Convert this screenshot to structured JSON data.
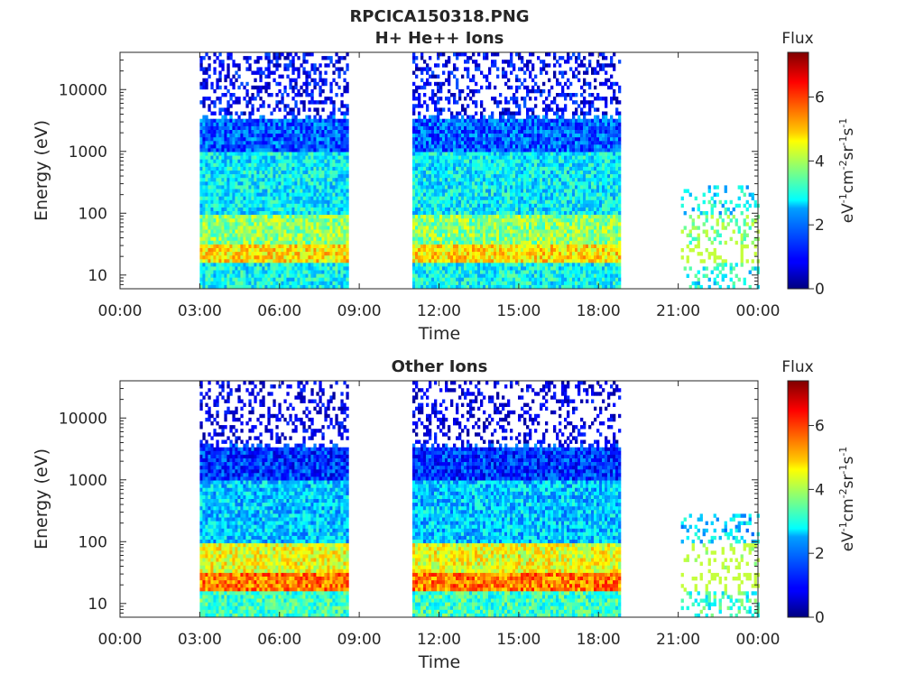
{
  "figure": {
    "title": "RPCICA150318.PNG"
  },
  "chart_data": [
    {
      "type": "heatmap",
      "title": "H+ He++ Ions",
      "xlabel": "Time",
      "ylabel": "Energy (eV)",
      "x_ticks": [
        "00:00",
        "03:00",
        "06:00",
        "09:00",
        "12:00",
        "15:00",
        "18:00",
        "21:00",
        "00:00"
      ],
      "x_range_hours": [
        0,
        24
      ],
      "y_ticks": [
        "10",
        "100",
        "1000",
        "10000"
      ],
      "y_scale": "log",
      "y_range": [
        6,
        40000
      ],
      "colorbar": {
        "title": "Flux",
        "label": "eV-1cm-2sr-1s-1",
        "ticks": [
          "0",
          "2",
          "4",
          "6"
        ],
        "range": [
          0,
          7.4
        ],
        "colormap": "jet"
      },
      "data_intervals_hours": [
        [
          3.0,
          8.6
        ],
        [
          11.0,
          18.8
        ],
        [
          21.1,
          24.0
        ]
      ],
      "sparse_intervals_hours": [
        [
          21.1,
          24.0
        ]
      ],
      "band_energies_eV": {
        "low_peak": 25,
        "mid": 110,
        "upper_band": 1500,
        "upper_band_top": 3300
      },
      "typical_flux": {
        "above_4000_eV": 0.8,
        "1000_3300_eV": 1.6,
        "100_1000_eV": 2.7,
        "30_100_eV": 3.8,
        "15_30_eV": 4.8,
        "below_15_eV": 2.8
      }
    },
    {
      "type": "heatmap",
      "title": "Other Ions",
      "xlabel": "Time",
      "ylabel": "Energy (eV)",
      "x_ticks": [
        "00:00",
        "03:00",
        "06:00",
        "09:00",
        "12:00",
        "15:00",
        "18:00",
        "21:00",
        "00:00"
      ],
      "x_range_hours": [
        0,
        24
      ],
      "y_ticks": [
        "10",
        "100",
        "1000",
        "10000"
      ],
      "y_scale": "log",
      "y_range": [
        6,
        40000
      ],
      "colorbar": {
        "title": "Flux",
        "label": "eV-1cm-2sr-1s-1",
        "ticks": [
          "0",
          "2",
          "4",
          "6"
        ],
        "range": [
          0,
          7.4
        ],
        "colormap": "jet"
      },
      "data_intervals_hours": [
        [
          3.0,
          8.6
        ],
        [
          11.0,
          18.8
        ],
        [
          21.1,
          24.0
        ]
      ],
      "sparse_intervals_hours": [
        [
          21.1,
          24.0
        ]
      ],
      "band_energies_eV": {
        "low_peak": 25,
        "mid": 60,
        "upper_band": 1700,
        "upper_band_top": 3300
      },
      "typical_flux": {
        "above_4000_eV": 0.5,
        "1000_3300_eV": 1.3,
        "100_1000_eV": 2.4,
        "30_100_eV": 4.5,
        "15_30_eV": 5.6,
        "below_15_eV": 3.2
      }
    }
  ]
}
